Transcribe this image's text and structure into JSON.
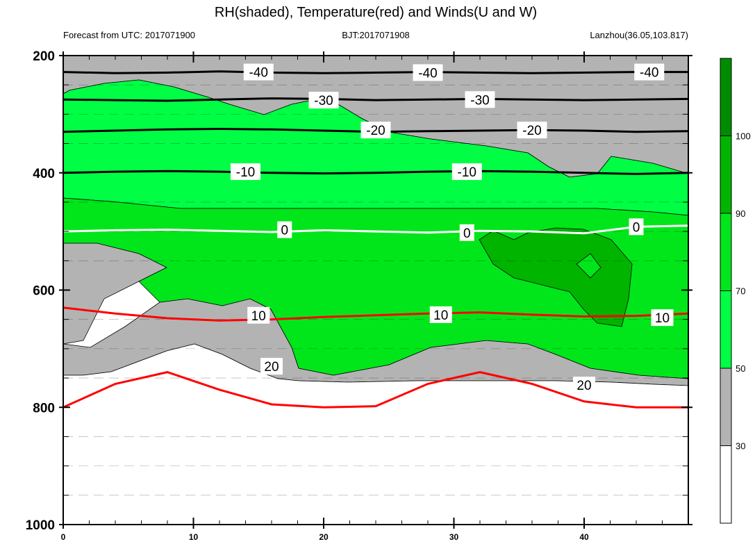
{
  "chart_data": {
    "type": "contour",
    "title": "RH(shaded), Temperature(red) and Winds(U and W)",
    "subtitle_left": "Forecast from UTC: 2017071900",
    "subtitle_center": "BJT:2017071908",
    "subtitle_right": "Lanzhou(36.05,103.817)",
    "xlim": [
      0,
      48
    ],
    "ylim": [
      1000,
      200
    ],
    "y_scale": "linear, pressure (hPa) decreasing upward",
    "x_ticks": [
      0,
      10,
      20,
      30,
      40
    ],
    "y_ticks": [
      200,
      400,
      600,
      800,
      1000
    ],
    "colorbar": {
      "levels": [
        30,
        50,
        70,
        90,
        100
      ],
      "colors": [
        "#ffffff",
        "#b3b3b3",
        "#00ff44",
        "#00e61a",
        "#00b400",
        "#008c00"
      ],
      "labels": [
        "30",
        "50",
        "70",
        "90",
        "100"
      ]
    },
    "temperature_contours": [
      {
        "level": -40,
        "color": "#000000",
        "y": [
          228,
          230,
          229,
          227,
          229,
          230,
          229,
          228,
          229,
          230,
          229,
          228,
          228
        ]
      },
      {
        "level": -30,
        "color": "#000000",
        "y": [
          275,
          276,
          277,
          275,
          273,
          274,
          276,
          275,
          274,
          275,
          276,
          275,
          274
        ]
      },
      {
        "level": -20,
        "color": "#000000",
        "y": [
          330,
          328,
          326,
          325,
          326,
          328,
          330,
          329,
          328,
          327,
          328,
          330,
          329
        ]
      },
      {
        "level": -10,
        "color": "#000000",
        "y": [
          400,
          398,
          397,
          398,
          400,
          401,
          400,
          398,
          397,
          398,
          400,
          402,
          400
        ]
      },
      {
        "level": 0,
        "color": "#ffffff",
        "y": [
          500,
          498,
          497,
          499,
          501,
          498,
          500,
          502,
          499,
          500,
          503,
          492,
          490
        ]
      },
      {
        "level": 10,
        "color": "#ff0000",
        "y": [
          630,
          640,
          648,
          652,
          650,
          646,
          643,
          640,
          638,
          642,
          645,
          644,
          640
        ]
      },
      {
        "level": 20,
        "color": "#ff0000",
        "y": [
          800,
          760,
          740,
          770,
          795,
          800,
          798,
          760,
          740,
          760,
          790,
          800,
          800
        ]
      }
    ],
    "contour_labels": [
      "-40",
      "-30",
      "-20",
      "-10",
      "0",
      "10",
      "20"
    ],
    "series": [
      {
        "name": "RH",
        "type": "shaded"
      },
      {
        "name": "Temperature",
        "type": "line",
        "color": "#ff0000"
      },
      {
        "name": "Winds",
        "type": "barbs"
      }
    ]
  }
}
